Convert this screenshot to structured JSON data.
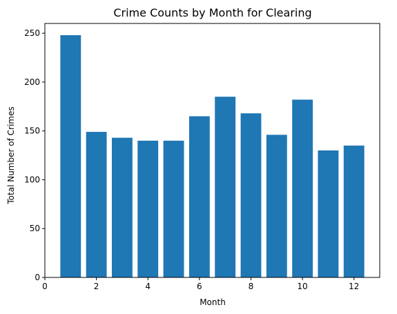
{
  "chart_data": {
    "type": "bar",
    "title": "Crime Counts by Month for Clearing",
    "xlabel": "Month",
    "ylabel": "Total Number of Crimes",
    "x": [
      1,
      2,
      3,
      4,
      5,
      6,
      7,
      8,
      9,
      10,
      11,
      12
    ],
    "values": [
      248,
      149,
      143,
      140,
      140,
      165,
      185,
      168,
      146,
      182,
      130,
      135
    ],
    "xlim": [
      0,
      13
    ],
    "ylim": [
      0,
      260
    ],
    "xticks": [
      0,
      2,
      4,
      6,
      8,
      10,
      12
    ],
    "yticks": [
      0,
      50,
      100,
      150,
      200,
      250
    ],
    "bar_color": "#1f77b4",
    "grid": false,
    "legend": "none"
  }
}
